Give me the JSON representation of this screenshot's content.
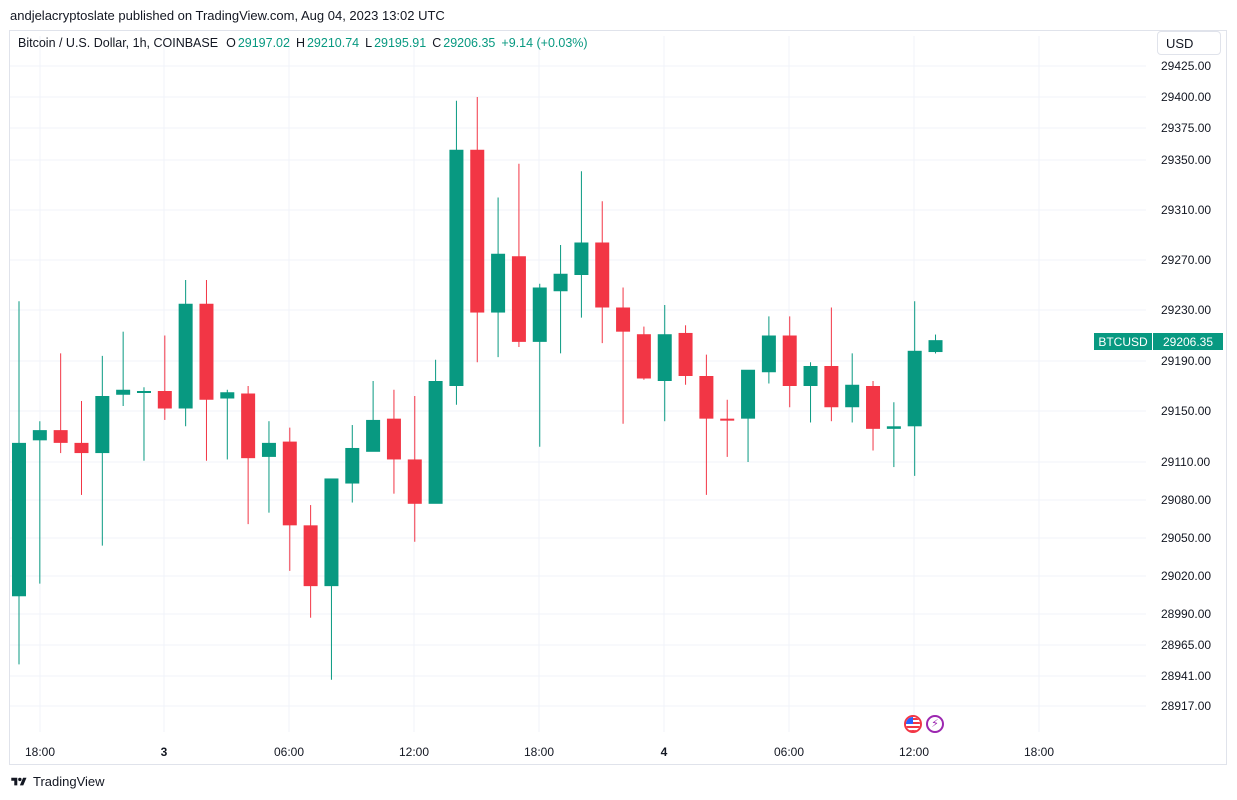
{
  "publisher": {
    "text": "andjelacryptoslate published on TradingView.com, Aug 04, 2023 13:02 UTC"
  },
  "legend": {
    "symbol": "Bitcoin / U.S. Dollar, 1h, COINBASE",
    "o_label": "O",
    "o_value": "29197.02",
    "h_label": "H",
    "h_value": "29210.74",
    "l_label": "L",
    "l_value": "29195.91",
    "c_label": "C",
    "c_value": "29206.35",
    "change": "+9.14 (+0.03%)"
  },
  "currency_button": {
    "label": "USD"
  },
  "price_tag": {
    "symbol": "BTCUSD",
    "price": "29206.35"
  },
  "events": {
    "flag_icon": "us-flag-icon",
    "event_icon": "lightning-icon"
  },
  "footer": {
    "brand": "TradingView",
    "logo_icon": "tradingview-logo-icon"
  },
  "colors": {
    "up": "#089981",
    "down": "#f23645",
    "grid": "#f0f3fa",
    "axis_text": "#131722"
  },
  "chart_data": {
    "type": "candlestick",
    "title": "Bitcoin / U.S. Dollar, 1h, COINBASE",
    "grid": true,
    "y_ticks": [
      "29425.00",
      "29400.00",
      "29375.00",
      "29350.00",
      "29310.00",
      "29270.00",
      "29230.00",
      "29190.00",
      "29150.00",
      "29110.00",
      "29080.00",
      "29050.00",
      "29020.00",
      "28990.00",
      "28965.00",
      "28941.00",
      "28917.00"
    ],
    "x_ticks": [
      "18:00",
      "3",
      "06:00",
      "12:00",
      "18:00",
      "4",
      "06:00",
      "12:00",
      "18:00"
    ],
    "candles": [
      {
        "o": 29004,
        "h": 29237,
        "l": 28950,
        "c": 29125
      },
      {
        "o": 29127,
        "h": 29142,
        "l": 29014,
        "c": 29135
      },
      {
        "o": 29135,
        "h": 29196,
        "l": 29117,
        "c": 29125
      },
      {
        "o": 29125,
        "h": 29158,
        "l": 29084,
        "c": 29117
      },
      {
        "o": 29117,
        "h": 29194,
        "l": 29044,
        "c": 29162
      },
      {
        "o": 29163,
        "h": 29213,
        "l": 29154,
        "c": 29167
      },
      {
        "o": 29166,
        "h": 29169,
        "l": 29111,
        "c": 29166
      },
      {
        "o": 29166,
        "h": 29210,
        "l": 29143,
        "c": 29152
      },
      {
        "o": 29152,
        "h": 29254,
        "l": 29138,
        "c": 29235
      },
      {
        "o": 29235,
        "h": 29254,
        "l": 29111,
        "c": 29159
      },
      {
        "o": 29160,
        "h": 29167,
        "l": 29112,
        "c": 29165
      },
      {
        "o": 29164,
        "h": 29170,
        "l": 29061,
        "c": 29113
      },
      {
        "o": 29114,
        "h": 29142,
        "l": 29070,
        "c": 29125
      },
      {
        "o": 29126,
        "h": 29137,
        "l": 29024,
        "c": 29060
      },
      {
        "o": 29060,
        "h": 29076,
        "l": 28987,
        "c": 29012
      },
      {
        "o": 29012,
        "h": 29097,
        "l": 28938,
        "c": 29097
      },
      {
        "o": 29093,
        "h": 29139,
        "l": 29078,
        "c": 29121
      },
      {
        "o": 29118,
        "h": 29174,
        "l": 29121,
        "c": 29143
      },
      {
        "o": 29144,
        "h": 29167,
        "l": 29085,
        "c": 29112
      },
      {
        "o": 29112,
        "h": 29162,
        "l": 29047,
        "c": 29077
      },
      {
        "o": 29077,
        "h": 29191,
        "l": 29078,
        "c": 29174
      },
      {
        "o": 29170,
        "h": 29397,
        "l": 29155,
        "c": 29358
      },
      {
        "o": 29358,
        "h": 29400,
        "l": 29189,
        "c": 29228
      },
      {
        "o": 29228,
        "h": 29320,
        "l": 29193,
        "c": 29275
      },
      {
        "o": 29273,
        "h": 29347,
        "l": 29201,
        "c": 29205
      },
      {
        "o": 29205,
        "h": 29251,
        "l": 29122,
        "c": 29248
      },
      {
        "o": 29245,
        "h": 29282,
        "l": 29196,
        "c": 29259
      },
      {
        "o": 29258,
        "h": 29341,
        "l": 29224,
        "c": 29284
      },
      {
        "o": 29284,
        "h": 29317,
        "l": 29204,
        "c": 29232
      },
      {
        "o": 29232,
        "h": 29248,
        "l": 29140,
        "c": 29213
      },
      {
        "o": 29211,
        "h": 29217,
        "l": 29175,
        "c": 29176
      },
      {
        "o": 29174,
        "h": 29234,
        "l": 29142,
        "c": 29211
      },
      {
        "o": 29212,
        "h": 29218,
        "l": 29171,
        "c": 29178
      },
      {
        "o": 29178,
        "h": 29195,
        "l": 29084,
        "c": 29144
      },
      {
        "o": 29144,
        "h": 29159,
        "l": 29114,
        "c": 29143
      },
      {
        "o": 29144,
        "h": 29182,
        "l": 29110,
        "c": 29183
      },
      {
        "o": 29181,
        "h": 29225,
        "l": 29172,
        "c": 29210
      },
      {
        "o": 29210,
        "h": 29225,
        "l": 29153,
        "c": 29170
      },
      {
        "o": 29170,
        "h": 29189,
        "l": 29141,
        "c": 29186
      },
      {
        "o": 29186,
        "h": 29232,
        "l": 29142,
        "c": 29153
      },
      {
        "o": 29153,
        "h": 29196,
        "l": 29141,
        "c": 29171
      },
      {
        "o": 29170,
        "h": 29174,
        "l": 29119,
        "c": 29136
      },
      {
        "o": 29136,
        "h": 29157,
        "l": 29106,
        "c": 29138
      },
      {
        "o": 29138,
        "h": 29237,
        "l": 29099,
        "c": 29198
      },
      {
        "o": 29197.02,
        "h": 29210.74,
        "l": 29195.91,
        "c": 29206.35
      }
    ]
  }
}
